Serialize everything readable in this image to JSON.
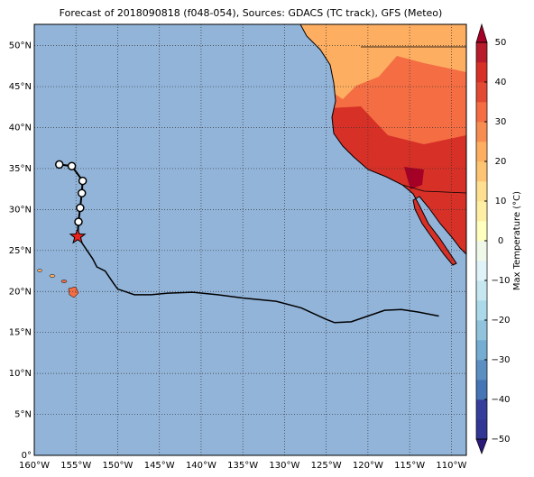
{
  "chart_data": {
    "type": "map",
    "title": "Forecast of 2018090818 (f048-054), Sources: GDACS (TC track), GFS (Meteo)",
    "xlim": [
      -160,
      -108.2
    ],
    "ylim": [
      0,
      52.6
    ],
    "xticks": [
      {
        "value": -160,
        "label": "160°W"
      },
      {
        "value": -155,
        "label": "155°W"
      },
      {
        "value": -150,
        "label": "150°W"
      },
      {
        "value": -145,
        "label": "145°W"
      },
      {
        "value": -140,
        "label": "140°W"
      },
      {
        "value": -135,
        "label": "135°W"
      },
      {
        "value": -130,
        "label": "130°W"
      },
      {
        "value": -125,
        "label": "125°W"
      },
      {
        "value": -120,
        "label": "120°W"
      },
      {
        "value": -115,
        "label": "115°W"
      },
      {
        "value": -110,
        "label": "110°W"
      }
    ],
    "yticks": [
      {
        "value": 0,
        "label": "0°"
      },
      {
        "value": 5,
        "label": "5°N"
      },
      {
        "value": 10,
        "label": "10°N"
      },
      {
        "value": 15,
        "label": "15°N"
      },
      {
        "value": 20,
        "label": "20°N"
      },
      {
        "value": 25,
        "label": "25°N"
      },
      {
        "value": 30,
        "label": "30°N"
      },
      {
        "value": 35,
        "label": "35°N"
      },
      {
        "value": 40,
        "label": "40°N"
      },
      {
        "value": 45,
        "label": "45°N"
      },
      {
        "value": 50,
        "label": "50°N"
      }
    ],
    "grid": true,
    "track": {
      "x": [
        -154.8,
        -154,
        -153,
        -152.5,
        -151.5,
        -150.5,
        -150,
        -148,
        -146,
        -144,
        -141,
        -138,
        -135,
        -131,
        -128,
        -125,
        -124,
        -122,
        -120,
        -118,
        -116,
        -114,
        -111.5
      ],
      "y": [
        26.7,
        25.5,
        24,
        23,
        22.5,
        21,
        20.3,
        19.6,
        19.6,
        19.8,
        19.9,
        19.6,
        19.2,
        18.8,
        18,
        16.6,
        16.2,
        16.3,
        17,
        17.7,
        17.8,
        17.5,
        17
      ]
    },
    "past": {
      "x": [
        -157,
        -155.5,
        -154.2,
        -154.3,
        -154.5,
        -154.7,
        -154.8
      ],
      "y": [
        35.5,
        35.3,
        33.5,
        32,
        30.2,
        28.5,
        26.7
      ]
    },
    "current": {
      "x": -154.8,
      "y": 26.7,
      "color": "#e8221c"
    },
    "colorbar": {
      "label": "Max Temperature (°C)",
      "lim": [
        -50,
        50
      ],
      "ticks": [
        {
          "value": -50,
          "label": "−50"
        },
        {
          "value": -40,
          "label": "−40"
        },
        {
          "value": -30,
          "label": "−30"
        },
        {
          "value": -20,
          "label": "−20"
        },
        {
          "value": -10,
          "label": "−10"
        },
        0,
        10,
        20,
        30,
        40,
        50
      ]
    }
  }
}
